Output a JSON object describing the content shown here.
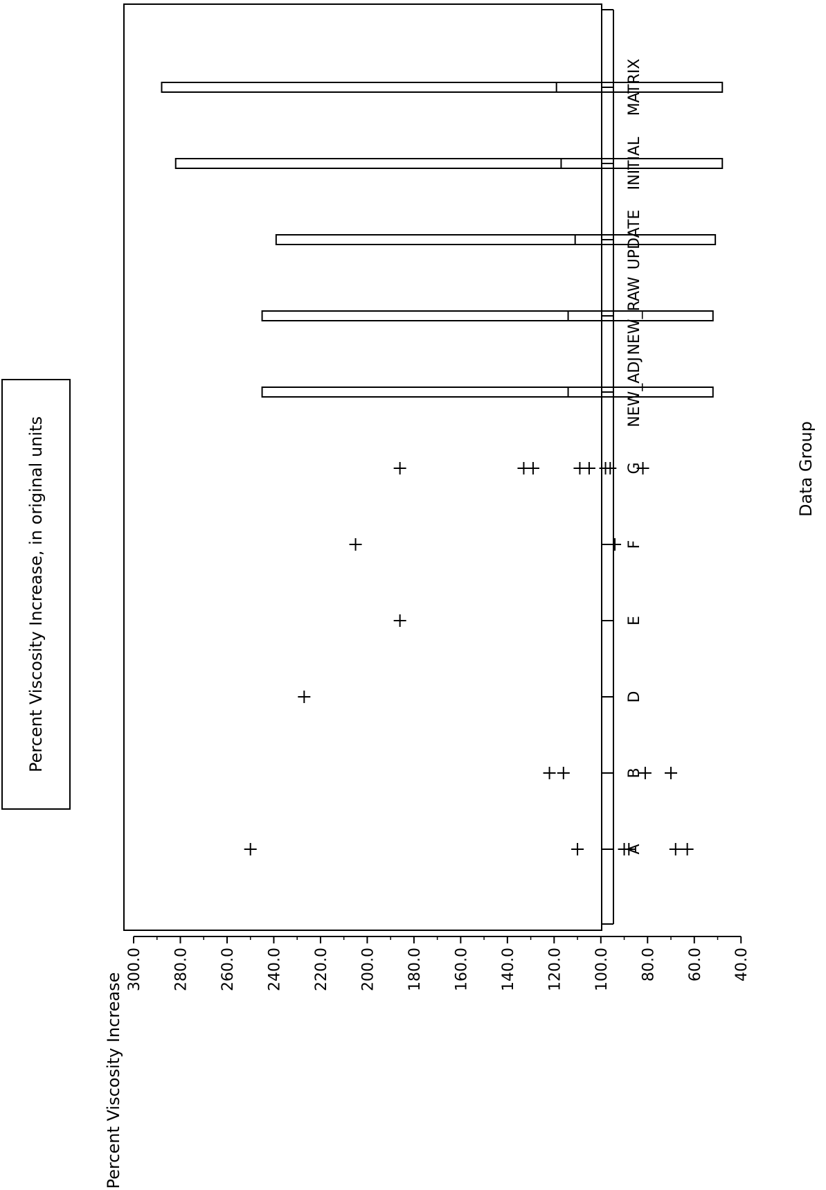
{
  "chart_data": {
    "type": "scatter",
    "title": "Percent Viscosity Increase, in original units",
    "xlabel": "Data Group",
    "ylabel": "Percent Viscosity Increase",
    "ylim": [
      40,
      300
    ],
    "yticks": [
      "300.0",
      "280.0",
      "260.0",
      "240.0",
      "220.0",
      "200.0",
      "180.0",
      "160.0",
      "140.0",
      "120.0",
      "100.0",
      "80.0",
      "60.0",
      "40.0"
    ],
    "categories": [
      "A",
      "B",
      "D",
      "E",
      "F",
      "G",
      "NEW-ADJ",
      "NEW-RAW",
      "UPDATE",
      "INITIAL",
      "MATRIX"
    ],
    "category_labels": [
      "A",
      "B",
      "D",
      "E",
      "F",
      "G",
      "NEW_ADJ",
      "NEW_RAW",
      "UPDATE",
      "INITIAL",
      "MATRIX"
    ],
    "points": {
      "A": [
        250,
        110,
        90,
        88,
        68,
        63
      ],
      "B": [
        122,
        116,
        81,
        70
      ],
      "D": [
        227
      ],
      "E": [
        186
      ],
      "F": [
        205,
        94
      ],
      "G": [
        186,
        133,
        129,
        109,
        105,
        98,
        96,
        82
      ]
    },
    "boxes": [
      {
        "category": "NEW-ADJ",
        "low": 52,
        "mid": 114,
        "high": 245
      },
      {
        "category": "NEW-RAW",
        "low": 52,
        "mid": 114,
        "high": 245
      },
      {
        "category": "UPDATE",
        "low": 51,
        "mid": 111,
        "high": 239
      },
      {
        "category": "INITIAL",
        "low": 48,
        "mid": 117,
        "high": 282
      },
      {
        "category": "MATRIX",
        "low": 48,
        "mid": 119,
        "high": 288
      }
    ],
    "grid": false,
    "orientation": "rotated-90"
  }
}
